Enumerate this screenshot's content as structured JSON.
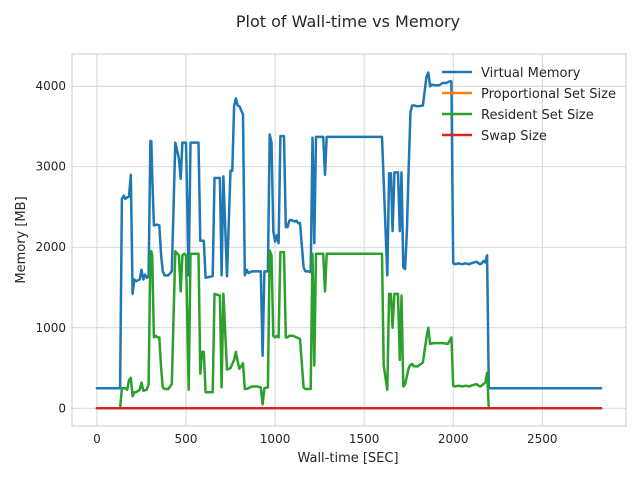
{
  "chart_data": {
    "type": "line",
    "title": "Plot of Wall-time vs Memory",
    "xlabel": "Wall-time [SEC]",
    "ylabel": "Memory [MB]",
    "xlim": [
      -140,
      2970
    ],
    "ylim": [
      -220,
      4400
    ],
    "xticks": [
      0,
      500,
      1000,
      1500,
      2000,
      2500
    ],
    "yticks": [
      0,
      1000,
      2000,
      3000,
      4000
    ],
    "grid": true,
    "legend_position": "top-right",
    "series": [
      {
        "name": "Virtual Memory",
        "color": "#1f77b4",
        "points": [
          [
            0,
            250
          ],
          [
            130,
            250
          ],
          [
            140,
            2600
          ],
          [
            150,
            2640
          ],
          [
            160,
            2600
          ],
          [
            170,
            2620
          ],
          [
            180,
            2630
          ],
          [
            190,
            2900
          ],
          [
            200,
            1420
          ],
          [
            210,
            1600
          ],
          [
            220,
            1580
          ],
          [
            240,
            1600
          ],
          [
            250,
            1720
          ],
          [
            260,
            1600
          ],
          [
            270,
            1660
          ],
          [
            280,
            1620
          ],
          [
            290,
            1640
          ],
          [
            300,
            3320
          ],
          [
            305,
            3320
          ],
          [
            310,
            2900
          ],
          [
            320,
            2270
          ],
          [
            330,
            2280
          ],
          [
            340,
            2280
          ],
          [
            350,
            2270
          ],
          [
            360,
            1900
          ],
          [
            370,
            1700
          ],
          [
            380,
            1650
          ],
          [
            400,
            1650
          ],
          [
            420,
            1700
          ],
          [
            440,
            3300
          ],
          [
            460,
            3100
          ],
          [
            470,
            2850
          ],
          [
            480,
            3300
          ],
          [
            500,
            3300
          ],
          [
            515,
            1650
          ],
          [
            525,
            3300
          ],
          [
            570,
            3300
          ],
          [
            580,
            2080
          ],
          [
            600,
            2080
          ],
          [
            610,
            1620
          ],
          [
            650,
            1640
          ],
          [
            660,
            2860
          ],
          [
            690,
            2860
          ],
          [
            700,
            1650
          ],
          [
            710,
            2880
          ],
          [
            730,
            1640
          ],
          [
            750,
            2950
          ],
          [
            760,
            2950
          ],
          [
            770,
            3750
          ],
          [
            780,
            3850
          ],
          [
            790,
            3760
          ],
          [
            800,
            3750
          ],
          [
            810,
            3700
          ],
          [
            820,
            3650
          ],
          [
            830,
            1650
          ],
          [
            840,
            1720
          ],
          [
            850,
            1680
          ],
          [
            870,
            1700
          ],
          [
            900,
            1700
          ],
          [
            920,
            1700
          ],
          [
            930,
            650
          ],
          [
            940,
            1700
          ],
          [
            960,
            1700
          ],
          [
            970,
            3400
          ],
          [
            980,
            3300
          ],
          [
            990,
            2200
          ],
          [
            1000,
            2070
          ],
          [
            1010,
            2150
          ],
          [
            1020,
            2050
          ],
          [
            1030,
            3380
          ],
          [
            1050,
            3380
          ],
          [
            1060,
            2250
          ],
          [
            1070,
            2250
          ],
          [
            1080,
            2330
          ],
          [
            1090,
            2340
          ],
          [
            1100,
            2330
          ],
          [
            1110,
            2320
          ],
          [
            1120,
            2330
          ],
          [
            1130,
            2300
          ],
          [
            1140,
            2300
          ],
          [
            1160,
            1750
          ],
          [
            1170,
            1700
          ],
          [
            1180,
            1700
          ],
          [
            1190,
            1700
          ],
          [
            1200,
            1690
          ],
          [
            1210,
            3360
          ],
          [
            1220,
            2050
          ],
          [
            1230,
            3370
          ],
          [
            1250,
            3370
          ],
          [
            1270,
            3370
          ],
          [
            1280,
            2900
          ],
          [
            1290,
            3370
          ],
          [
            1370,
            3370
          ],
          [
            1380,
            3370
          ],
          [
            1600,
            3370
          ],
          [
            1630,
            1650
          ],
          [
            1640,
            2920
          ],
          [
            1650,
            2920
          ],
          [
            1660,
            2200
          ],
          [
            1670,
            2930
          ],
          [
            1690,
            2930
          ],
          [
            1700,
            2200
          ],
          [
            1710,
            2930
          ],
          [
            1720,
            1750
          ],
          [
            1730,
            1730
          ],
          [
            1740,
            2200
          ],
          [
            1750,
            3000
          ],
          [
            1760,
            3680
          ],
          [
            1770,
            3760
          ],
          [
            1780,
            3760
          ],
          [
            1800,
            3750
          ],
          [
            1830,
            3760
          ],
          [
            1850,
            4120
          ],
          [
            1860,
            4170
          ],
          [
            1870,
            4000
          ],
          [
            1880,
            4020
          ],
          [
            1900,
            4010
          ],
          [
            1920,
            4010
          ],
          [
            1940,
            4040
          ],
          [
            1960,
            4040
          ],
          [
            1980,
            4060
          ],
          [
            1990,
            4060
          ],
          [
            2000,
            1800
          ],
          [
            2010,
            1790
          ],
          [
            2030,
            1800
          ],
          [
            2050,
            1790
          ],
          [
            2070,
            1800
          ],
          [
            2090,
            1790
          ],
          [
            2100,
            1800
          ],
          [
            2130,
            1820
          ],
          [
            2150,
            1790
          ],
          [
            2160,
            1800
          ],
          [
            2170,
            1830
          ],
          [
            2180,
            1810
          ],
          [
            2190,
            1900
          ],
          [
            2200,
            250
          ],
          [
            2830,
            250
          ]
        ]
      },
      {
        "name": "Proportional Set Size",
        "color": "#ff7f0e",
        "points": [
          [
            0,
            0
          ],
          [
            2830,
            0
          ]
        ]
      },
      {
        "name": "Resident Set Size",
        "color": "#2ca02c",
        "points": [
          [
            0,
            0
          ],
          [
            130,
            0
          ],
          [
            140,
            250
          ],
          [
            160,
            250
          ],
          [
            170,
            230
          ],
          [
            180,
            350
          ],
          [
            190,
            380
          ],
          [
            200,
            150
          ],
          [
            210,
            200
          ],
          [
            220,
            200
          ],
          [
            240,
            230
          ],
          [
            250,
            320
          ],
          [
            260,
            220
          ],
          [
            280,
            230
          ],
          [
            290,
            300
          ],
          [
            300,
            1950
          ],
          [
            305,
            1950
          ],
          [
            310,
            1900
          ],
          [
            320,
            880
          ],
          [
            330,
            900
          ],
          [
            340,
            880
          ],
          [
            350,
            880
          ],
          [
            360,
            500
          ],
          [
            370,
            260
          ],
          [
            380,
            240
          ],
          [
            400,
            240
          ],
          [
            420,
            300
          ],
          [
            440,
            1950
          ],
          [
            460,
            1900
          ],
          [
            470,
            1450
          ],
          [
            480,
            1900
          ],
          [
            490,
            1920
          ],
          [
            500,
            1900
          ],
          [
            515,
            230
          ],
          [
            525,
            1920
          ],
          [
            570,
            1920
          ],
          [
            580,
            430
          ],
          [
            590,
            700
          ],
          [
            600,
            700
          ],
          [
            610,
            200
          ],
          [
            650,
            200
          ],
          [
            660,
            1420
          ],
          [
            690,
            1400
          ],
          [
            700,
            260
          ],
          [
            710,
            1420
          ],
          [
            730,
            480
          ],
          [
            750,
            500
          ],
          [
            770,
            600
          ],
          [
            780,
            700
          ],
          [
            790,
            580
          ],
          [
            800,
            490
          ],
          [
            810,
            520
          ],
          [
            820,
            560
          ],
          [
            830,
            240
          ],
          [
            840,
            240
          ],
          [
            870,
            270
          ],
          [
            900,
            270
          ],
          [
            920,
            260
          ],
          [
            930,
            50
          ],
          [
            940,
            250
          ],
          [
            960,
            260
          ],
          [
            970,
            1960
          ],
          [
            980,
            1900
          ],
          [
            990,
            900
          ],
          [
            1000,
            880
          ],
          [
            1010,
            900
          ],
          [
            1020,
            880
          ],
          [
            1030,
            1940
          ],
          [
            1050,
            1940
          ],
          [
            1060,
            880
          ],
          [
            1070,
            880
          ],
          [
            1080,
            900
          ],
          [
            1100,
            900
          ],
          [
            1120,
            880
          ],
          [
            1140,
            860
          ],
          [
            1160,
            260
          ],
          [
            1170,
            240
          ],
          [
            1190,
            240
          ],
          [
            1200,
            240
          ],
          [
            1210,
            1920
          ],
          [
            1220,
            530
          ],
          [
            1230,
            1920
          ],
          [
            1250,
            1920
          ],
          [
            1270,
            1920
          ],
          [
            1280,
            1450
          ],
          [
            1290,
            1920
          ],
          [
            1370,
            1920
          ],
          [
            1380,
            1920
          ],
          [
            1600,
            1920
          ],
          [
            1610,
            530
          ],
          [
            1630,
            230
          ],
          [
            1640,
            1420
          ],
          [
            1650,
            1420
          ],
          [
            1660,
            1000
          ],
          [
            1670,
            1420
          ],
          [
            1690,
            1420
          ],
          [
            1700,
            600
          ],
          [
            1710,
            1400
          ],
          [
            1720,
            270
          ],
          [
            1730,
            300
          ],
          [
            1740,
            400
          ],
          [
            1750,
            500
          ],
          [
            1760,
            540
          ],
          [
            1770,
            550
          ],
          [
            1780,
            520
          ],
          [
            1800,
            520
          ],
          [
            1830,
            570
          ],
          [
            1850,
            880
          ],
          [
            1860,
            1000
          ],
          [
            1870,
            800
          ],
          [
            1890,
            810
          ],
          [
            1920,
            810
          ],
          [
            1940,
            810
          ],
          [
            1970,
            800
          ],
          [
            1990,
            880
          ],
          [
            2000,
            280
          ],
          [
            2010,
            270
          ],
          [
            2030,
            280
          ],
          [
            2050,
            270
          ],
          [
            2070,
            280
          ],
          [
            2090,
            270
          ],
          [
            2100,
            280
          ],
          [
            2130,
            300
          ],
          [
            2150,
            270
          ],
          [
            2160,
            280
          ],
          [
            2170,
            300
          ],
          [
            2180,
            320
          ],
          [
            2190,
            440
          ],
          [
            2200,
            0
          ],
          [
            2830,
            0
          ]
        ]
      },
      {
        "name": "Swap Size",
        "color": "#d62728",
        "points": [
          [
            0,
            0
          ],
          [
            2830,
            0
          ]
        ]
      }
    ]
  }
}
